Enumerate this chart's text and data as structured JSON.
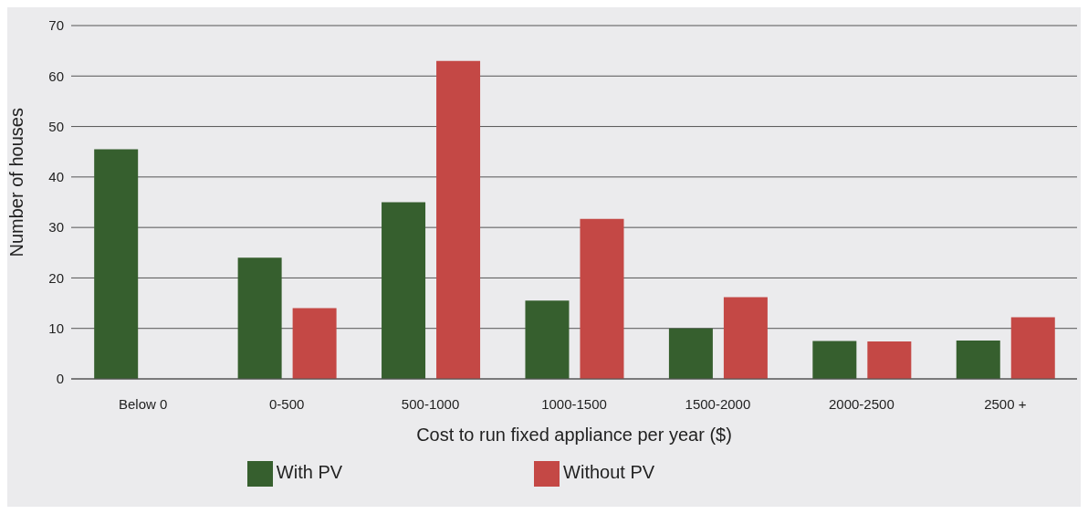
{
  "chart_data": {
    "type": "bar",
    "xlabel": "Cost to run fixed appliance per year ($)",
    "ylabel": "Number of houses",
    "categories": [
      "Below 0",
      "0-500",
      "500-1000",
      "1000-1500",
      "1500-2000",
      "2000-2500",
      "2500 +"
    ],
    "series": [
      {
        "name": "With PV",
        "color": "#365f2e",
        "values": [
          45.5,
          24,
          35,
          15.5,
          10,
          7.5,
          7.6
        ]
      },
      {
        "name": "Without PV",
        "color": "#c44845",
        "values": [
          0,
          14,
          63,
          31.7,
          16.2,
          7.4,
          12.2
        ]
      }
    ],
    "ylim": [
      0,
      70
    ],
    "yticks": [
      0,
      10,
      20,
      30,
      40,
      50,
      60,
      70
    ],
    "grid": "y",
    "legend": "bottom"
  }
}
